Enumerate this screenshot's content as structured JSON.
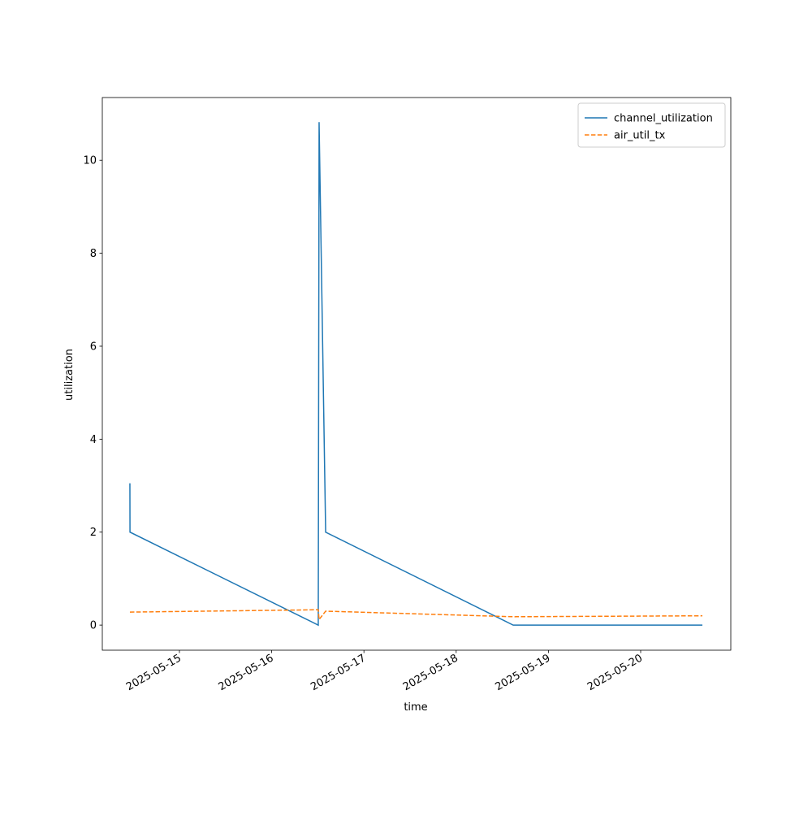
{
  "chart_data": {
    "type": "line",
    "x_label": "time",
    "y_label": "utilization",
    "x": [
      20222.463,
      20222.464,
      20224.505,
      20224.514,
      20224.585,
      20226.618,
      20228.669
    ],
    "series": [
      {
        "name": "channel_utilization",
        "color": "#1f77b4",
        "dash": false,
        "values": [
          3.05,
          2.0,
          0.0,
          10.82,
          2.0,
          0.0,
          0.0
        ]
      },
      {
        "name": "air_util_tx",
        "color": "#ff7f0e",
        "dash": true,
        "values": [
          0.28,
          0.28,
          0.33,
          0.12,
          0.3,
          0.18,
          0.2
        ]
      }
    ],
    "xlim": [
      20222.164,
      20228.977
    ],
    "xticks": [
      {
        "value": 20223,
        "label": "2025-05-15"
      },
      {
        "value": 20224,
        "label": "2025-05-16"
      },
      {
        "value": 20225,
        "label": "2025-05-17"
      },
      {
        "value": 20226,
        "label": "2025-05-18"
      },
      {
        "value": 20227,
        "label": "2025-05-19"
      },
      {
        "value": 20228,
        "label": "2025-05-20"
      }
    ],
    "ylim": [
      -0.54,
      11.35
    ],
    "yticks": [
      0,
      2,
      4,
      6,
      8,
      10
    ],
    "grid": false,
    "legend": "upper right"
  }
}
